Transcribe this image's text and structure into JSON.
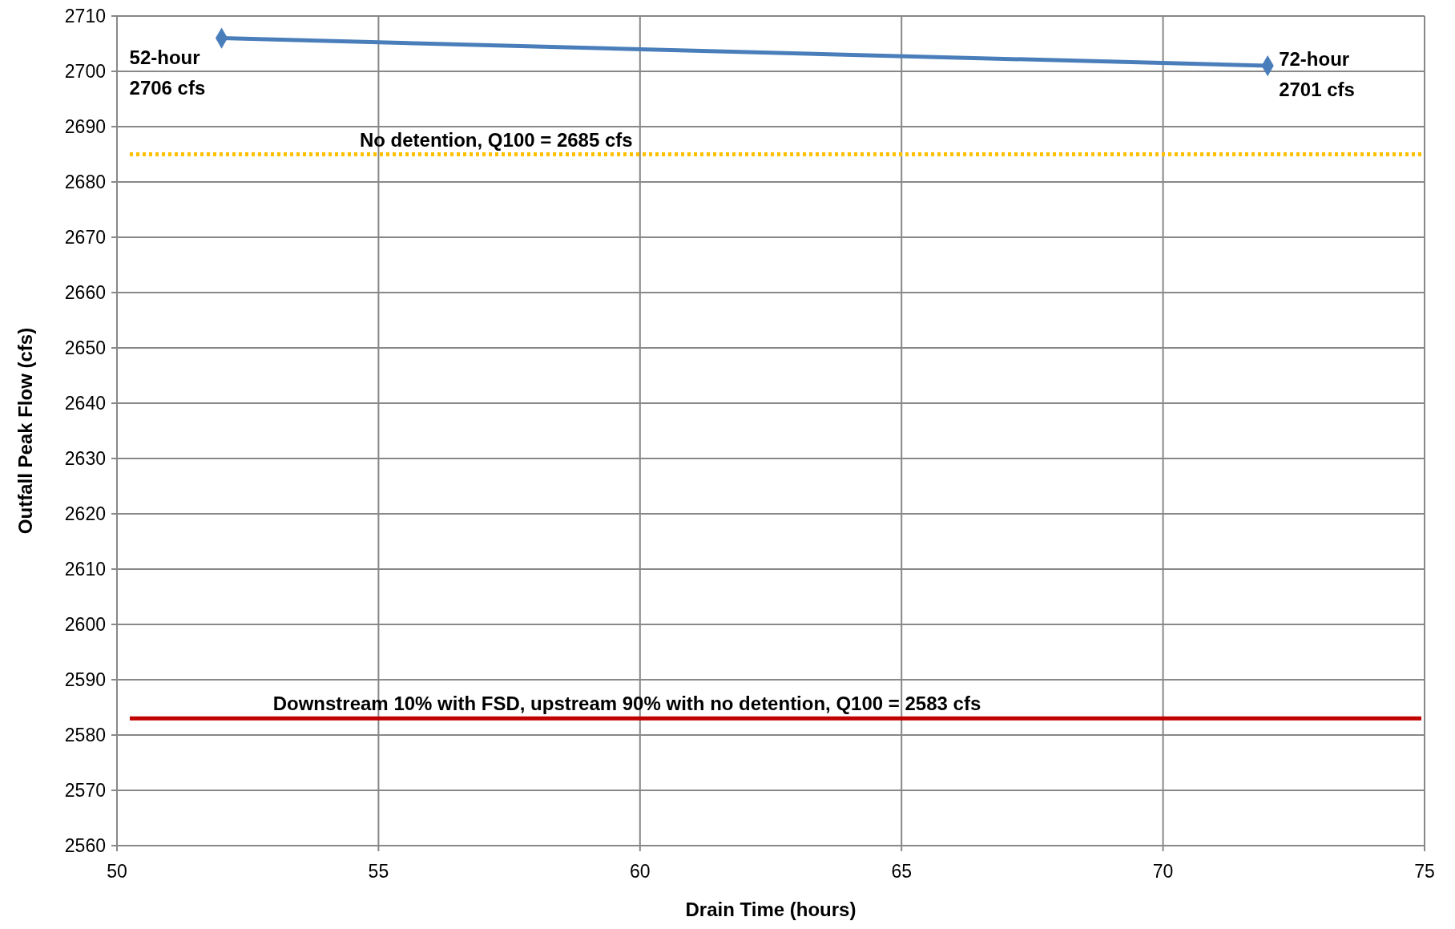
{
  "chart_data": {
    "type": "line",
    "xlabel": "Drain Time (hours)",
    "ylabel": "Outfall Peak Flow (cfs)",
    "x": [
      52,
      72
    ],
    "series": [
      {
        "color": "#4a7ebb",
        "values": [
          2706,
          2701
        ]
      }
    ],
    "xlim": [
      50,
      75
    ],
    "xticks": [
      50,
      55,
      60,
      65,
      70,
      75
    ],
    "ylim": [
      2560,
      2710
    ],
    "yticks": [
      2560,
      2570,
      2580,
      2590,
      2600,
      2610,
      2620,
      2630,
      2640,
      2650,
      2660,
      2670,
      2680,
      2690,
      2700,
      2710
    ],
    "grid": true,
    "marker": "diamond",
    "line_style": "solid",
    "ref_lines": [
      {
        "axis": "y",
        "value": 2685,
        "label": "No detention, Q100 = 2685 cfs",
        "color": "#ffc000",
        "line_style": "dotted"
      },
      {
        "axis": "y",
        "value": 2583,
        "label": "Downstream 10% with FSD, upstream 90% with no detention, Q100 = 2583 cfs",
        "color": "#c00000",
        "line_style": "solid"
      }
    ],
    "annotations": [
      {
        "text": "52-hour\n2706 cfs",
        "x": 52,
        "y": 2706
      },
      {
        "text": "72-hour\n2701 cfs",
        "x": 72,
        "y": 2701
      }
    ]
  }
}
